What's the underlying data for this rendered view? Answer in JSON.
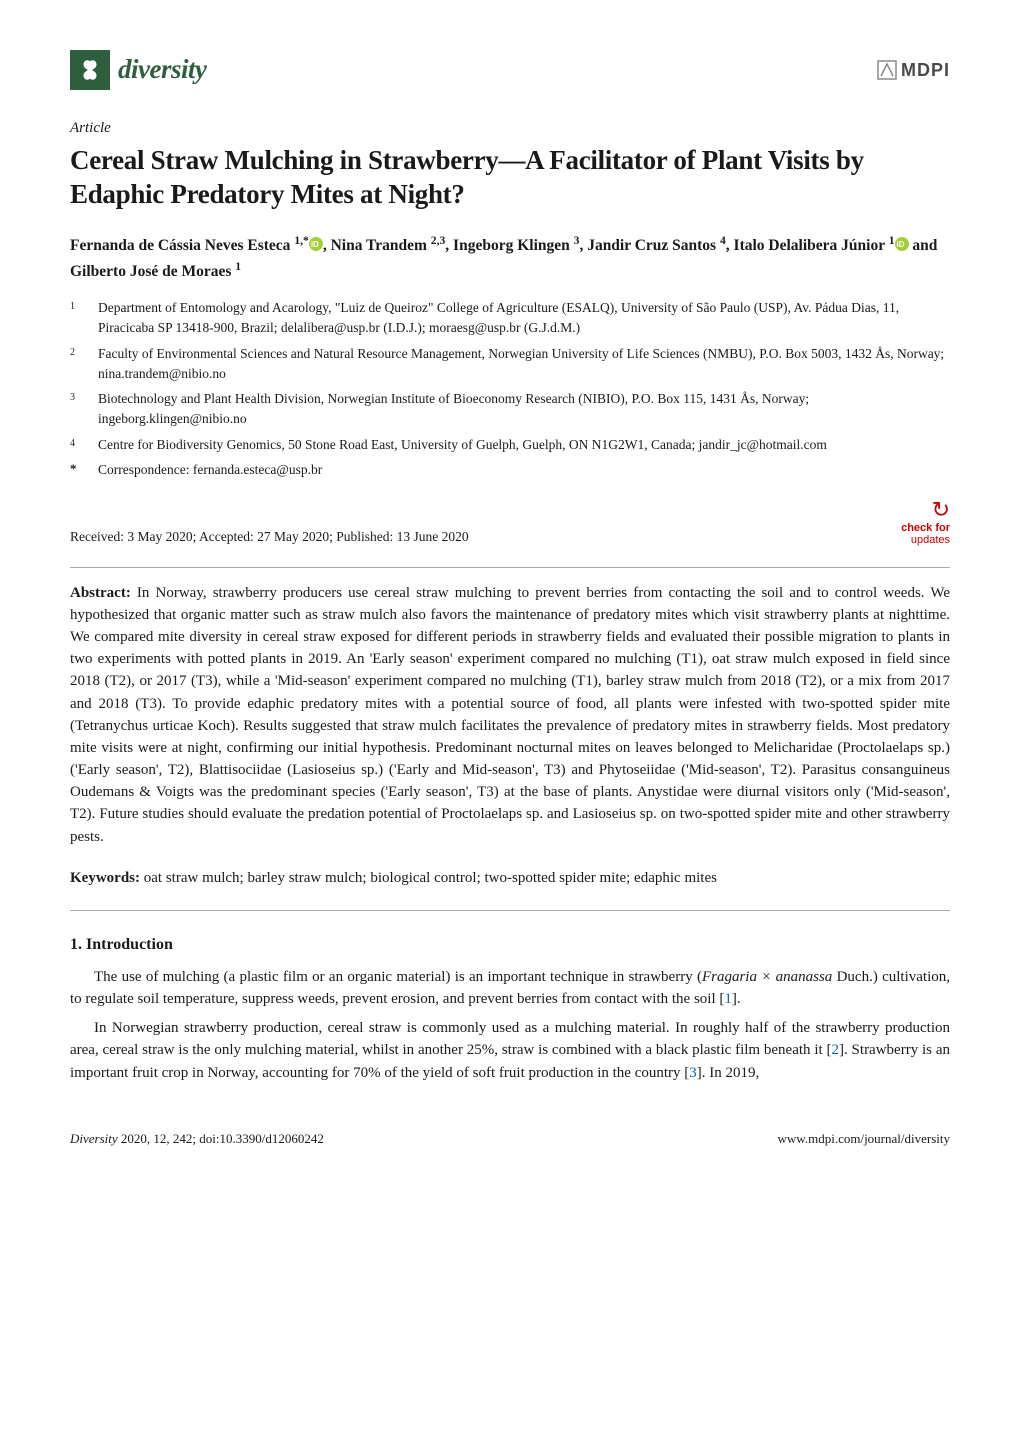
{
  "journal": {
    "name": "diversity",
    "icon_bg": "#2d5f3f",
    "publisher": "MDPI"
  },
  "article": {
    "type": "Article",
    "title": "Cereal Straw Mulching in Strawberry—A Facilitator of Plant Visits by Edaphic Predatory Mites at Night?"
  },
  "authors_line": "Fernanda de Cássia Neves Esteca 1,* , Nina Trandem 2,3, Ingeborg Klingen 3, Jandir Cruz Santos 4, Italo Delalibera Júnior 1  and Gilberto José de Moraes 1",
  "author_parts": [
    {
      "text": "Fernanda de Cássia Neves Esteca ",
      "sup": "1,",
      "star": "*",
      "orcid": true,
      "after": ", "
    },
    {
      "text": "Nina Trandem ",
      "sup": "2,3",
      "after": ", "
    },
    {
      "text": "Ingeborg Klingen ",
      "sup": "3",
      "after": ", "
    },
    {
      "text": "Jandir Cruz Santos ",
      "sup": "4",
      "after": ", "
    },
    {
      "text": "Italo Delalibera Júnior ",
      "sup": "1",
      "orcid": true,
      "after": " and "
    },
    {
      "text": "Gilberto José de Moraes ",
      "sup": "1",
      "after": ""
    }
  ],
  "affiliations": [
    {
      "num": "1",
      "text": "Department of Entomology and Acarology, \"Luiz de Queiroz\" College of Agriculture (ESALQ), University of São Paulo (USP), Av. Pádua Dias, 11, Piracicaba SP 13418-900, Brazil; delalibera@usp.br (I.D.J.); moraesg@usp.br (G.J.d.M.)"
    },
    {
      "num": "2",
      "text": "Faculty of Environmental Sciences and Natural Resource Management, Norwegian University of Life Sciences (NMBU), P.O. Box 5003, 1432 Ås, Norway; nina.trandem@nibio.no"
    },
    {
      "num": "3",
      "text": "Biotechnology and Plant Health Division, Norwegian Institute of Bioeconomy Research (NIBIO), P.O. Box 115, 1431 Ås, Norway; ingeborg.klingen@nibio.no"
    },
    {
      "num": "4",
      "text": "Centre for Biodiversity Genomics, 50 Stone Road East, University of Guelph, Guelph, ON N1G2W1, Canada; jandir_jc@hotmail.com"
    }
  ],
  "correspondence": {
    "mark": "*",
    "text": "Correspondence: fernanda.esteca@usp.br"
  },
  "dates": "Received: 3 May 2020; Accepted: 27 May 2020; Published: 13 June 2020",
  "update_badge": {
    "line1": "check for",
    "line2": "updates"
  },
  "abstract": {
    "label": "Abstract:",
    "text": " In Norway, strawberry producers use cereal straw mulching to prevent berries from contacting the soil and to control weeds. We hypothesized that organic matter such as straw mulch also favors the maintenance of predatory mites which visit strawberry plants at nighttime. We compared mite diversity in cereal straw exposed for different periods in strawberry fields and evaluated their possible migration to plants in two experiments with potted plants in 2019. An 'Early season' experiment compared no mulching (T1), oat straw mulch exposed in field since 2018 (T2), or 2017 (T3), while a 'Mid-season' experiment compared no mulching (T1), barley straw mulch from 2018 (T2), or a mix from 2017 and 2018 (T3). To provide edaphic predatory mites with a potential source of food, all plants were infested with two-spotted spider mite (Tetranychus urticae Koch). Results suggested that straw mulch facilitates the prevalence of predatory mites in strawberry fields. Most predatory mite visits were at night, confirming our initial hypothesis. Predominant nocturnal mites on leaves belonged to Melicharidae (Proctolaelaps sp.) ('Early season', T2), Blattisociidae (Lasioseius sp.) ('Early and Mid-season', T3) and Phytoseiidae ('Mid-season', T2). Parasitus consanguineus Oudemans & Voigts was the predominant species ('Early season', T3) at the base of plants. Anystidae were diurnal visitors only ('Mid-season', T2). Future studies should evaluate the predation potential of Proctolaelaps sp. and Lasioseius sp. on two-spotted spider mite and other strawberry pests."
  },
  "keywords": {
    "label": "Keywords:",
    "text": " oat straw mulch; barley straw mulch; biological control; two-spotted spider mite; edaphic mites"
  },
  "section1": {
    "heading": "1. Introduction",
    "para1_pre": "The use of mulching (a plastic film or an organic material) is an important technique in strawberry (",
    "para1_species": "Fragaria × ananassa",
    "para1_post": " Duch.) cultivation, to regulate soil temperature, suppress weeds, prevent erosion, and prevent berries from contact with the soil [",
    "para1_cite": "1",
    "para1_end": "].",
    "para2_pre": "In Norwegian strawberry production, cereal straw is commonly used as a mulching material. In roughly half of the strawberry production area, cereal straw is the only mulching material, whilst in another 25%, straw is combined with a black plastic film beneath it [",
    "para2_cite1": "2",
    "para2_mid": "]. Strawberry is an important fruit crop in Norway, accounting for 70% of the yield of soft fruit production in the country [",
    "para2_cite2": "3",
    "para2_end": "]. In 2019,"
  },
  "footer": {
    "left_journal": "Diversity",
    "left_rest": " 2020, 12, 242; doi:10.3390/d12060242",
    "right": "www.mdpi.com/journal/diversity"
  },
  "colors": {
    "brand_green": "#2d5f3f",
    "cite_blue": "#0066b3",
    "badge_red": "#c00",
    "text": "#1a1a1a",
    "bg": "#ffffff",
    "orcid_green": "#a6ce39"
  },
  "typography": {
    "title_size_pt": 20,
    "body_size_pt": 11,
    "small_size_pt": 9.5,
    "heading_size_pt": 12
  }
}
